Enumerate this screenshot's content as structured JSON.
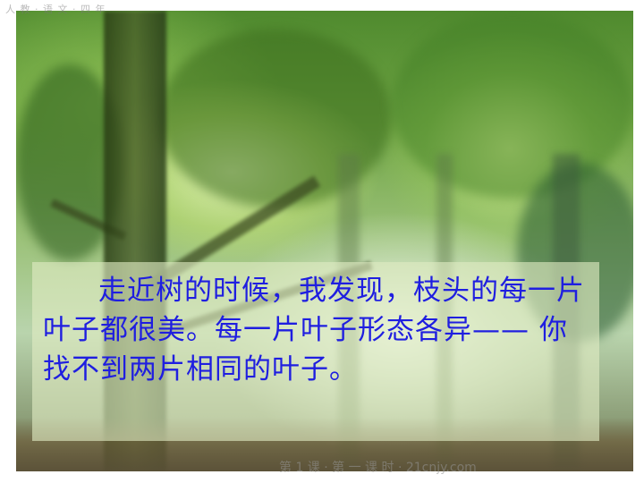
{
  "slide": {
    "header_text": "人 教 · 语 文 · 四 年",
    "passage": "走近树的时候，我发现，枝头的每一片叶子都很美。每一片叶子形态各异—— 你找不到两片相同的叶子。",
    "footer_watermark": "第 1 课 ·  第 一 课 时  ·  21cnjy.com"
  },
  "colors": {
    "text": "#1f1ee0",
    "text_box_background": "#e1ebc3"
  },
  "icons": {
    "background": "forest-tree-photo"
  }
}
